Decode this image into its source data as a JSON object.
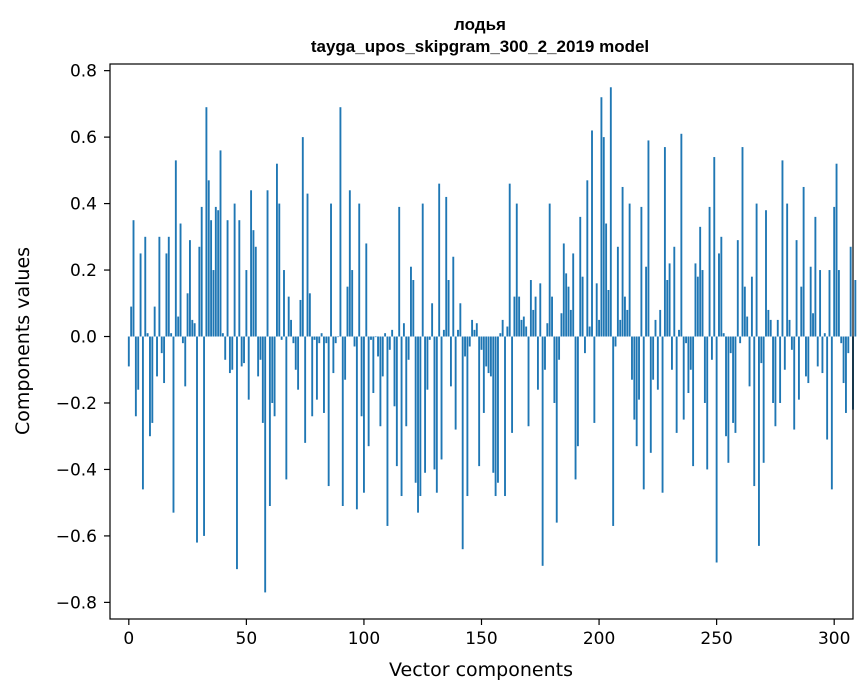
{
  "chart_data": {
    "type": "bar",
    "title": "лодья",
    "subtitle": "tayga_upos_skipgram_300_2_2019 model",
    "xlabel": "Vector components",
    "ylabel": "Components values",
    "xlim": [
      -8,
      308
    ],
    "ylim": [
      -0.85,
      0.82
    ],
    "xticks": [
      0,
      50,
      100,
      150,
      200,
      250,
      300
    ],
    "yticks": [
      -0.8,
      -0.6,
      -0.4,
      -0.2,
      0.0,
      0.2,
      0.4,
      0.6,
      0.8
    ],
    "ytick_labels": [
      "−0.8",
      "−0.6",
      "−0.4",
      "−0.2",
      "0.0",
      "0.2",
      "0.4",
      "0.6",
      "0.8"
    ],
    "grid": false,
    "bar_color": "#1f77b4",
    "values": [
      -0.09,
      0.09,
      0.35,
      -0.24,
      -0.16,
      0.25,
      -0.46,
      0.3,
      0.01,
      -0.3,
      -0.26,
      0.09,
      -0.12,
      0.3,
      -0.05,
      -0.14,
      0.25,
      0.3,
      0.01,
      -0.53,
      0.53,
      0.06,
      0.34,
      -0.02,
      -0.15,
      0.13,
      0.29,
      0.05,
      0.04,
      -0.62,
      0.27,
      0.39,
      -0.6,
      0.69,
      0.47,
      0.35,
      0.2,
      0.39,
      0.38,
      0.56,
      0.01,
      -0.07,
      0.35,
      -0.11,
      -0.1,
      0.4,
      -0.7,
      0.35,
      -0.09,
      -0.08,
      0.2,
      -0.19,
      0.44,
      0.32,
      0.27,
      -0.12,
      -0.07,
      -0.26,
      -0.77,
      0.44,
      -0.51,
      -0.2,
      -0.24,
      0.52,
      0.4,
      -0.01,
      0.2,
      -0.43,
      0.12,
      0.05,
      -0.02,
      -0.1,
      -0.16,
      0.11,
      0.6,
      -0.32,
      0.43,
      0.13,
      -0.24,
      -0.01,
      -0.19,
      -0.02,
      0.01,
      -0.23,
      -0.02,
      -0.45,
      0.4,
      -0.11,
      -0.02,
      0.0,
      0.69,
      -0.51,
      -0.13,
      0.15,
      0.44,
      0.2,
      -0.03,
      -0.52,
      0.4,
      -0.24,
      -0.47,
      0.28,
      -0.33,
      -0.01,
      -0.17,
      0.0,
      -0.06,
      -0.27,
      -0.12,
      0.01,
      -0.57,
      -0.04,
      0.02,
      -0.21,
      -0.39,
      0.39,
      -0.48,
      0.04,
      -0.27,
      -0.07,
      0.21,
      0.17,
      -0.44,
      -0.53,
      -0.48,
      0.4,
      -0.41,
      -0.16,
      -0.01,
      0.1,
      -0.4,
      -0.47,
      0.46,
      -0.37,
      0.02,
      0.42,
      0.17,
      -0.15,
      0.24,
      -0.28,
      0.02,
      0.1,
      -0.64,
      -0.06,
      -0.48,
      -0.03,
      0.05,
      0.02,
      0.04,
      -0.39,
      -0.04,
      -0.23,
      -0.09,
      -0.11,
      -0.12,
      -0.41,
      -0.48,
      -0.44,
      0.01,
      0.05,
      -0.48,
      0.03,
      0.46,
      -0.29,
      0.12,
      0.4,
      0.12,
      0.05,
      0.06,
      0.03,
      -0.27,
      0.17,
      0.08,
      0.12,
      -0.16,
      0.16,
      -0.69,
      -0.1,
      0.04,
      0.4,
      0.12,
      -0.2,
      -0.56,
      -0.07,
      0.07,
      0.28,
      0.19,
      0.15,
      0.08,
      0.25,
      -0.43,
      -0.33,
      0.36,
      0.18,
      -0.05,
      0.47,
      0.03,
      0.62,
      -0.26,
      0.16,
      0.05,
      0.72,
      0.6,
      0.34,
      0.14,
      0.75,
      -0.57,
      -0.03,
      0.27,
      0.05,
      0.45,
      0.12,
      0.08,
      0.4,
      -0.13,
      -0.25,
      -0.33,
      -0.19,
      0.39,
      -0.46,
      0.21,
      0.59,
      -0.35,
      -0.13,
      0.05,
      -0.16,
      0.08,
      -0.47,
      0.57,
      0.17,
      0.22,
      -0.1,
      0.27,
      -0.29,
      0.02,
      0.61,
      -0.25,
      -0.02,
      -0.17,
      -0.1,
      -0.39,
      0.22,
      0.18,
      0.33,
      0.2,
      -0.2,
      -0.4,
      0.39,
      -0.07,
      0.54,
      -0.68,
      0.25,
      0.3,
      0.01,
      -0.3,
      -0.38,
      -0.05,
      -0.26,
      -0.29,
      0.29,
      -0.02,
      0.57,
      0.15,
      0.06,
      -0.15,
      0.18,
      -0.45,
      0.4,
      -0.63,
      -0.08,
      -0.38,
      0.38,
      0.08,
      0.05,
      -0.2,
      -0.27,
      0.05,
      -0.2,
      0.53,
      -0.1,
      0.4,
      0.05,
      -0.04,
      -0.28,
      0.29,
      -0.19,
      0.15,
      0.45,
      -0.12,
      -0.14,
      0.21,
      0.07,
      0.36,
      -0.09,
      0.2,
      -0.11,
      0.01,
      -0.31,
      0.2,
      -0.46,
      0.39,
      0.52,
      0.2,
      -0.02,
      -0.14,
      -0.23,
      -0.05,
      0.27,
      -0.22,
      0.17
    ]
  }
}
